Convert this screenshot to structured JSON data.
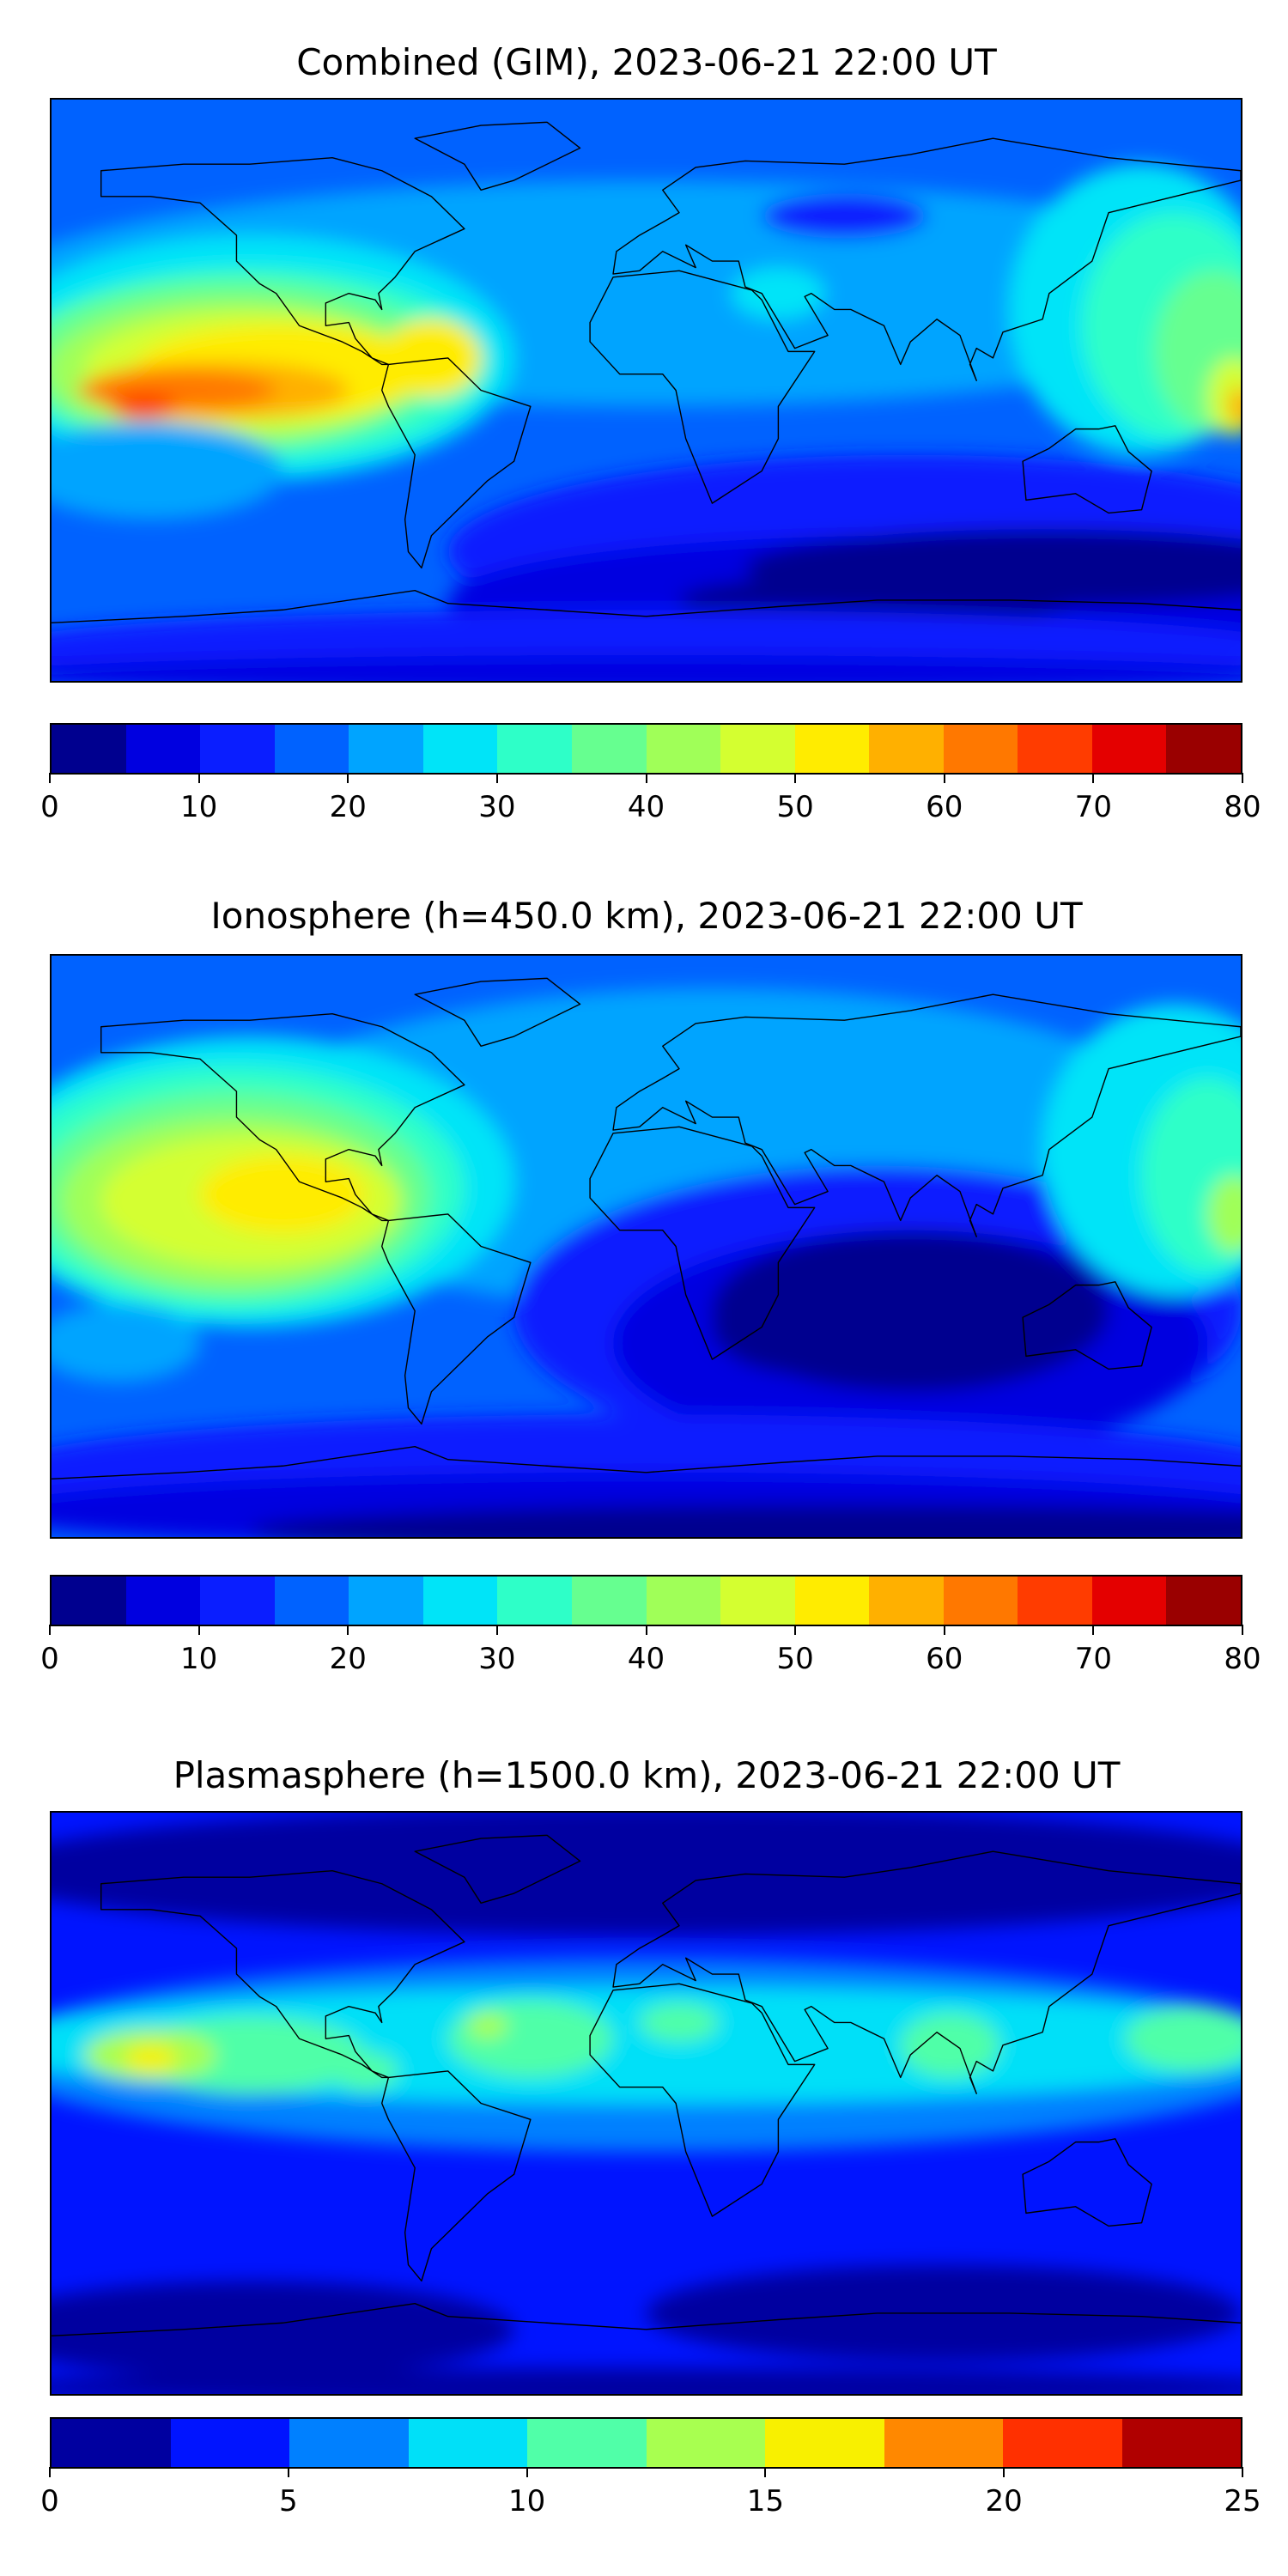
{
  "chart_data": [
    {
      "type": "heatmap",
      "subtype": "filled-contour-map",
      "title": "Combined (GIM), 2023-06-21 22:00 UT",
      "colorbar": {
        "range": [
          0,
          80
        ],
        "levels": [
          0,
          5,
          10,
          15,
          20,
          25,
          30,
          35,
          40,
          45,
          50,
          55,
          60,
          65,
          70,
          75,
          80
        ],
        "tick_labels": [
          "0",
          "10",
          "20",
          "30",
          "40",
          "50",
          "60",
          "70",
          "80"
        ],
        "tick_values": [
          0,
          10,
          20,
          30,
          40,
          50,
          60,
          70,
          80
        ],
        "colors": [
          "#00008f",
          "#0000e0",
          "#0a1eff",
          "#0062ff",
          "#00a4ff",
          "#00e4f8",
          "#2effc8",
          "#66ff90",
          "#a0ff58",
          "#d4ff30",
          "#ffec00",
          "#ffb000",
          "#ff7800",
          "#ff3c00",
          "#e40000",
          "#9a0000"
        ]
      },
      "features": {
        "max_region": "equatorial Pacific ~60-70",
        "min_region": "southern Indian Ocean 0-5"
      }
    },
    {
      "type": "heatmap",
      "subtype": "filled-contour-map",
      "title": "Ionosphere  (h=450.0 km), 2023-06-21 22:00 UT",
      "colorbar": {
        "range": [
          0,
          80
        ],
        "levels": [
          0,
          5,
          10,
          15,
          20,
          25,
          30,
          35,
          40,
          45,
          50,
          55,
          60,
          65,
          70,
          75,
          80
        ],
        "tick_labels": [
          "0",
          "10",
          "20",
          "30",
          "40",
          "50",
          "60",
          "70",
          "80"
        ],
        "tick_values": [
          0,
          10,
          20,
          30,
          40,
          50,
          60,
          70,
          80
        ],
        "colors": [
          "#00008f",
          "#0000e0",
          "#0a1eff",
          "#0062ff",
          "#00a4ff",
          "#00e4f8",
          "#2effc8",
          "#66ff90",
          "#a0ff58",
          "#d4ff30",
          "#ffec00",
          "#ffb000",
          "#ff7800",
          "#ff3c00",
          "#e40000",
          "#9a0000"
        ]
      },
      "features": {
        "max_region": "equatorial Pacific ~50-55",
        "min_region": "Indian Ocean 0-5"
      }
    },
    {
      "type": "heatmap",
      "subtype": "filled-contour-map",
      "title": "Plasmasphere (h=1500.0 km), 2023-06-21 22:00 UT",
      "colorbar": {
        "range": [
          0,
          25
        ],
        "levels": [
          0,
          2.5,
          5,
          7.5,
          10,
          12.5,
          15,
          17.5,
          20,
          22.5,
          25
        ],
        "tick_labels": [
          "0",
          "5",
          "10",
          "15",
          "20",
          "25"
        ],
        "tick_values": [
          0,
          5,
          10,
          15,
          20,
          25
        ],
        "colors": [
          "#0000a0",
          "#0014ff",
          "#0080ff",
          "#00e0f8",
          "#50ffa8",
          "#a8ff50",
          "#f8f000",
          "#ff8800",
          "#ff3000",
          "#b00000"
        ]
      },
      "features": {
        "max_region": "central Pacific ~15",
        "min_region": "polar 0-2.5"
      }
    }
  ]
}
